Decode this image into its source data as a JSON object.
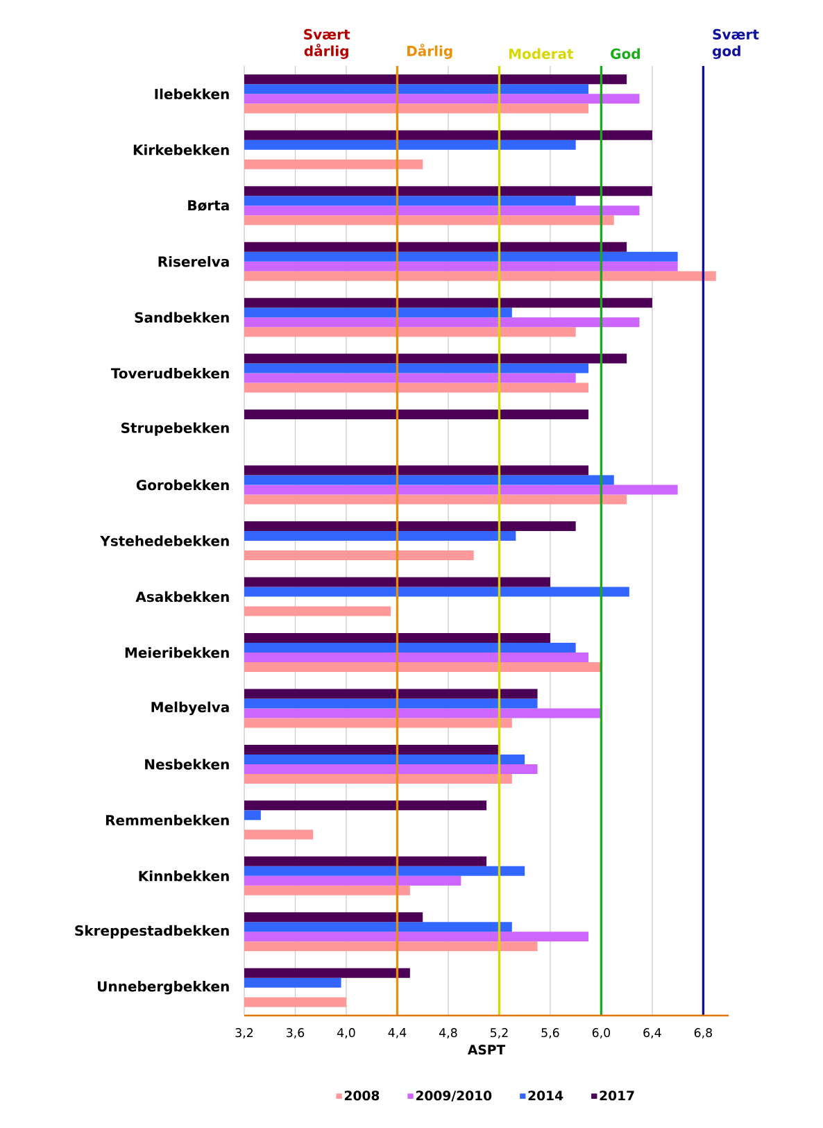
{
  "chart_data": {
    "type": "bar",
    "orientation": "horizontal",
    "xlabel": "ASPT",
    "categories": [
      "Ilebekken",
      "Kirkebekken",
      "Børta",
      "Riserelva",
      "Sandbekken",
      "Toverudbekken",
      "Strupebekken",
      "Gorobekken",
      "Ystehedebekken",
      "Asakbekken",
      "Meieribekken",
      "Melbyelva",
      "Nesbekken",
      "Remmenbekken",
      "Kinnbekken",
      "Skreppestadbekken",
      "Unnebergbekken"
    ],
    "series": [
      {
        "name": "2008",
        "color": "#ff9999",
        "values": [
          5.9,
          4.6,
          6.1,
          6.9,
          5.8,
          5.9,
          null,
          6.2,
          5.0,
          4.35,
          6.0,
          5.3,
          5.3,
          3.74,
          4.5,
          5.5,
          4.0
        ]
      },
      {
        "name": "2009/2010",
        "color": "#cc66ff",
        "values": [
          6.3,
          null,
          6.3,
          6.6,
          6.3,
          5.8,
          null,
          6.6,
          null,
          null,
          5.9,
          6.0,
          5.5,
          null,
          4.9,
          5.9,
          null
        ]
      },
      {
        "name": "2014",
        "color": "#3366ff",
        "values": [
          5.9,
          5.8,
          5.8,
          6.6,
          5.3,
          5.9,
          null,
          6.1,
          5.33,
          6.22,
          5.8,
          5.5,
          5.4,
          3.33,
          5.4,
          5.3,
          3.96
        ]
      },
      {
        "name": "2017",
        "color": "#4b0055",
        "values": [
          6.2,
          6.4,
          6.4,
          6.2,
          6.4,
          6.2,
          5.9,
          5.9,
          5.8,
          5.6,
          5.6,
          5.5,
          5.2,
          5.1,
          5.1,
          4.6,
          4.5
        ]
      }
    ],
    "xlim": [
      3.2,
      7.0
    ],
    "xticks": [
      {
        "value": 3.2,
        "label": "3,2"
      },
      {
        "value": 3.6,
        "label": "3,6"
      },
      {
        "value": 4.0,
        "label": "4,0"
      },
      {
        "value": 4.4,
        "label": "4,4"
      },
      {
        "value": 4.8,
        "label": "4,8"
      },
      {
        "value": 5.2,
        "label": "5,2"
      },
      {
        "value": 5.6,
        "label": "5,6"
      },
      {
        "value": 6.0,
        "label": "6,0"
      },
      {
        "value": 6.4,
        "label": "6,4"
      },
      {
        "value": 6.8,
        "label": "6,8"
      }
    ],
    "ref_lines": [
      {
        "axis": "x",
        "value": 4.4,
        "label": "Dårlig",
        "color": "#e8900a"
      },
      {
        "axis": "x",
        "value": 5.2,
        "label": "Moderat",
        "color": "#d8d800"
      },
      {
        "axis": "x",
        "value": 6.0,
        "label": "God",
        "color": "#1aaa1a"
      },
      {
        "axis": "x",
        "value": 6.8,
        "label": "Svært god",
        "color": "#1010a0"
      }
    ],
    "annotations": [
      "Svært dårlig"
    ],
    "grid": "x",
    "legend": "bottom"
  }
}
